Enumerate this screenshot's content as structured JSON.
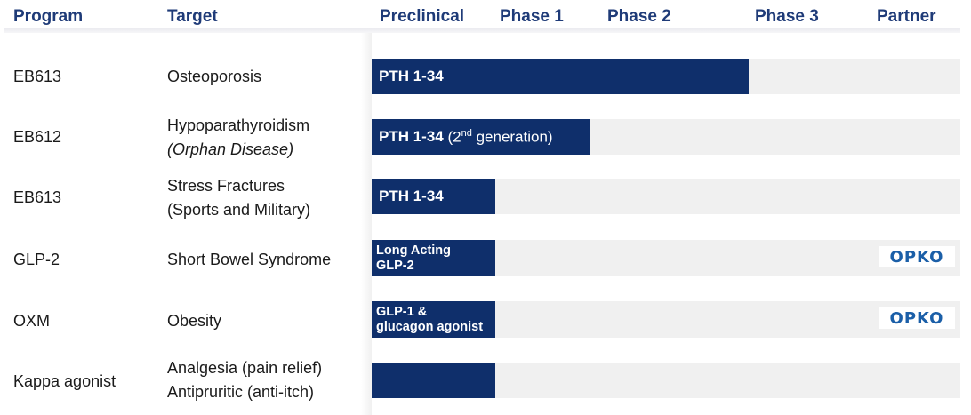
{
  "headers": {
    "program": "Program",
    "target": "Target",
    "preclinical": "Preclinical",
    "phase1": "Phase 1",
    "phase2": "Phase 2",
    "phase3": "Phase 3",
    "partner": "Partner"
  },
  "colors": {
    "bar": "#0f2f6b",
    "header": "#1f3b78",
    "track": "#f0f0f0",
    "partner_logo": "#1b5fa8"
  },
  "rows": [
    {
      "program": "EB613",
      "target_line1": "Osteoporosis",
      "target_line2": "",
      "bar_label": "PTH 1-34",
      "bar_extra": "",
      "progress": 0.64,
      "partner": ""
    },
    {
      "program": "EB612",
      "target_line1": "Hypoparathyroidism",
      "target_line2": "(Orphan Disease)",
      "bar_label": "PTH 1-34",
      "bar_extra_pre": "(2",
      "bar_extra_sup": "nd",
      "bar_extra_post": " generation)",
      "progress": 0.37,
      "partner": ""
    },
    {
      "program": "EB613",
      "target_line1": "Stress Fractures",
      "target_line2": "(Sports and Military)",
      "bar_label": "PTH 1-34",
      "bar_extra": "",
      "progress": 0.21,
      "partner": ""
    },
    {
      "program": "GLP-2",
      "target_line1": "Short Bowel Syndrome",
      "target_line2": "",
      "bar_label_line1": "Long Acting",
      "bar_label_line2": "GLP-2",
      "progress": 0.21,
      "partner": "OPKO"
    },
    {
      "program": "OXM",
      "target_line1": "Obesity",
      "target_line2": "",
      "bar_label_line1": "GLP-1 &",
      "bar_label_line2": "glucagon agonist",
      "progress": 0.21,
      "partner": "OPKO"
    },
    {
      "program": "Kappa agonist",
      "target_line1": "Analgesia (pain relief)",
      "target_line2": "Antipruritic (anti-itch)",
      "bar_label": "",
      "progress": 0.21,
      "partner": ""
    }
  ]
}
